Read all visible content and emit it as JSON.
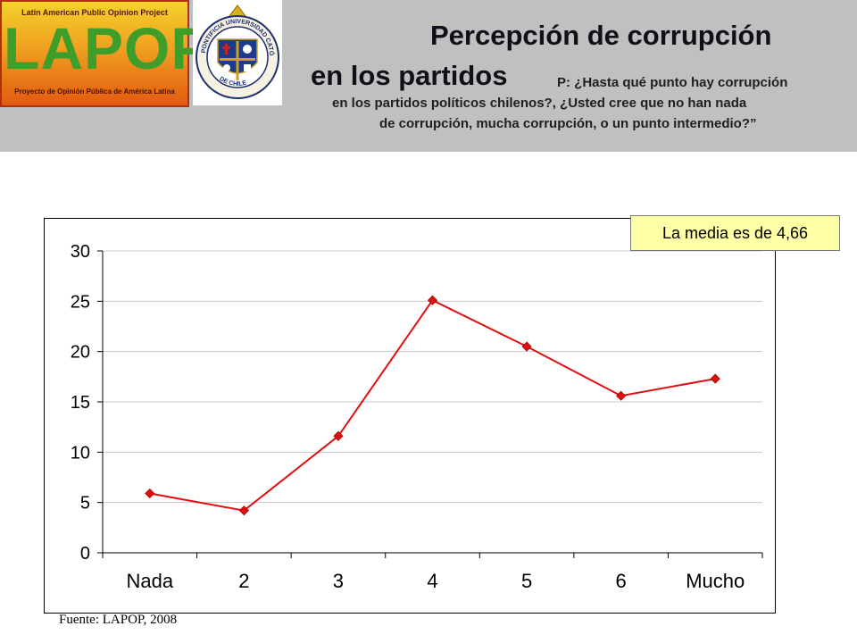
{
  "header": {
    "lapop_top": "Latin American Public Opinion Project",
    "lapop_word": "LAPOP",
    "lapop_bottom": "Proyecto de Opinión Pública de América Latina",
    "seal_text": "PONTIFICIA UNIVERSIDAD CATÓLICA DE CHILE",
    "title_line1": "Percepción de corrupción",
    "title_line2": "en los partidos",
    "question_line1": "P:  ¿Hasta qué punto hay corrupción",
    "question_line2": "en los partidos políticos chilenos?, ¿Usted cree que no han nada",
    "question_line3": "de corrupción, mucha corrupción, o un punto intermedio?”"
  },
  "annotation": {
    "mean_label": "La media es de 4,66"
  },
  "source": "Fuente: LAPOP, 2008",
  "colors": {
    "series": "#e01010",
    "header_bg": "#c0c0c0",
    "lapop_green": "#3f9e2a",
    "note_bg": "#ffffa6"
  },
  "chart_data": {
    "type": "line",
    "categories": [
      "Nada",
      "2",
      "3",
      "4",
      "5",
      "6",
      "Mucho"
    ],
    "series": [
      {
        "values": [
          5.9,
          4.2,
          11.6,
          25.1,
          20.5,
          15.6,
          17.3
        ]
      }
    ],
    "ylim": [
      0,
      30
    ],
    "yticks": [
      0,
      5,
      10,
      15,
      20,
      25,
      30
    ],
    "grid": true,
    "legend": "none"
  }
}
